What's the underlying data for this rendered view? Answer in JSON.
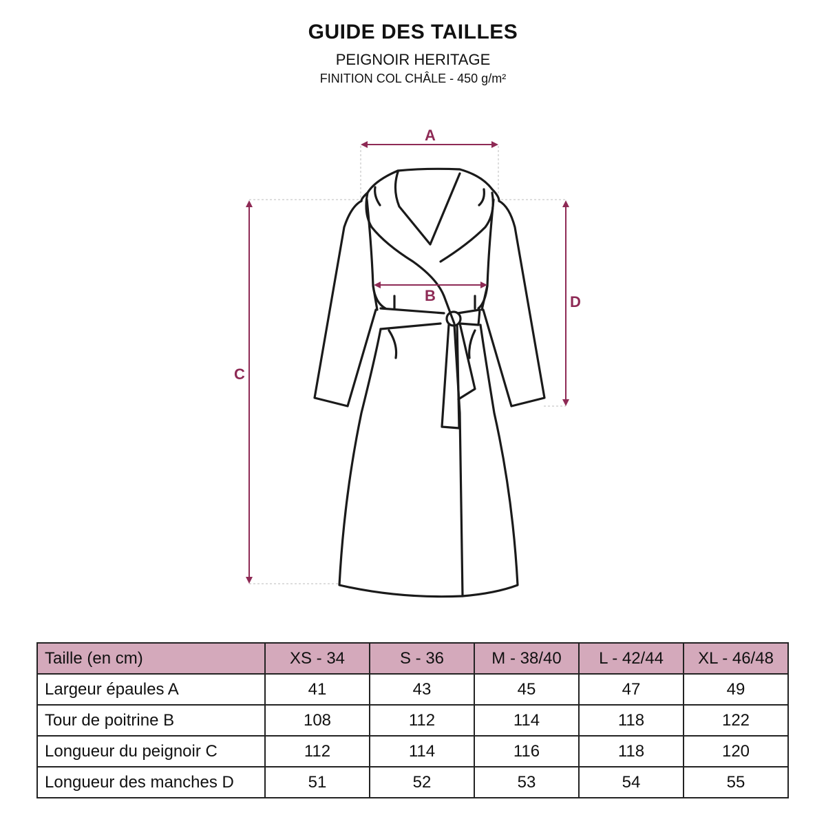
{
  "header": {
    "title": "GUIDE DES TAILLES",
    "subtitle": "PEIGNOIR HERITAGE",
    "detail": "FINITION COL CHÂLE - 450 g/m²"
  },
  "diagram": {
    "accent_color": "#8e2a55",
    "labels": {
      "a": "A",
      "b": "B",
      "c": "C",
      "d": "D"
    }
  },
  "table": {
    "header_color": "#d4a9bb",
    "columns": [
      "Taille (en cm)",
      "XS - 34",
      "S - 36",
      "M - 38/40",
      "L - 42/44",
      "XL - 46/48"
    ],
    "rows": [
      {
        "label": "Largeur épaules A",
        "values": [
          "41",
          "43",
          "45",
          "47",
          "49"
        ]
      },
      {
        "label": "Tour de poitrine B",
        "values": [
          "108",
          "112",
          "114",
          "118",
          "122"
        ]
      },
      {
        "label": "Longueur du peignoir C",
        "values": [
          "112",
          "114",
          "116",
          "118",
          "120"
        ]
      },
      {
        "label": "Longueur des manches D",
        "values": [
          "51",
          "52",
          "53",
          "54",
          "55"
        ]
      }
    ]
  }
}
